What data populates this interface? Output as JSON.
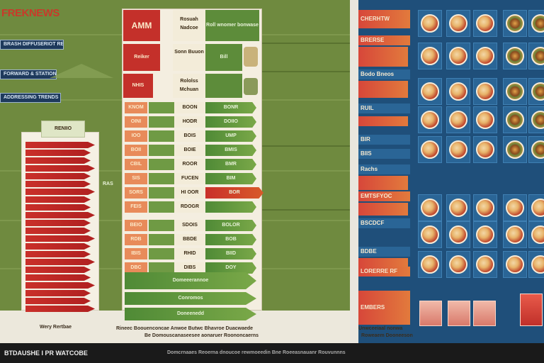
{
  "logo": "FREKNEWS",
  "left": {
    "tags": [
      "BRASH DIFFUSERIOT RESTAURANT",
      "FORWARD & STATION",
      "ADDRESSING TRENDS"
    ],
    "header_cells": [
      "AMM",
      "Rosuah Nadcoe",
      "Roll wnomer bonwase"
    ],
    "row_cells": [
      [
        "Reiker",
        "Sonn Buuon",
        "Bill",
        ""
      ],
      [
        "NHIS",
        "Rololss Mchuan",
        "",
        ""
      ]
    ],
    "grid_left": [
      "KNOM",
      "OINI",
      "IOO",
      "BOII",
      "CBIL",
      "SIS",
      "SORS",
      "FEIS",
      "BEIO",
      "RDB",
      "IBIS",
      "DBC"
    ],
    "grid_mid": [
      "BOON",
      "HODR",
      "BOIS",
      "BOIE",
      "ROOR",
      "FUCEN",
      "HI OOR",
      "RDOGR",
      "SDOIS",
      "BBDE",
      "RHID",
      "DIBS"
    ],
    "grid_right": [
      "BONR",
      "DOIIO",
      "UMP",
      "BMIS",
      "BMR",
      "BIM",
      "BOR",
      "",
      "BOLOR",
      "BOB",
      "BIID",
      "DOY"
    ],
    "bottom_bars": [
      "Domeeerannoe",
      "Conromos",
      "Doneenedd"
    ],
    "tower_label": "Wery Rertbae",
    "tower_heading": "RENIIO",
    "small_tag": "RAS",
    "captions": [
      "Rineec Boouenconcae Anwoe Butwc Bhavroe Duacwaede",
      "Be Domouscanaseesee aonaruer Roononcaerns"
    ]
  },
  "right": {
    "labels": [
      "CHERHTW",
      "BRERSE",
      "Bodo Bneos",
      "RUIL",
      "BIR",
      "BIIS",
      "Rachs",
      "EMTSFYOC",
      "BSCDCF",
      "BDBE",
      "EMBERS",
      "LORERRE RF",
      "Unwceeiaal nonwa",
      "Roweaem Dooneeson"
    ]
  },
  "footer": {
    "left": "BTDAUSHE I PR WATCOBE",
    "center": "Domcrnaaes Reoerna dnoucoe rewmoeedin Bne Roeeasnauanr Rouvunnns"
  }
}
